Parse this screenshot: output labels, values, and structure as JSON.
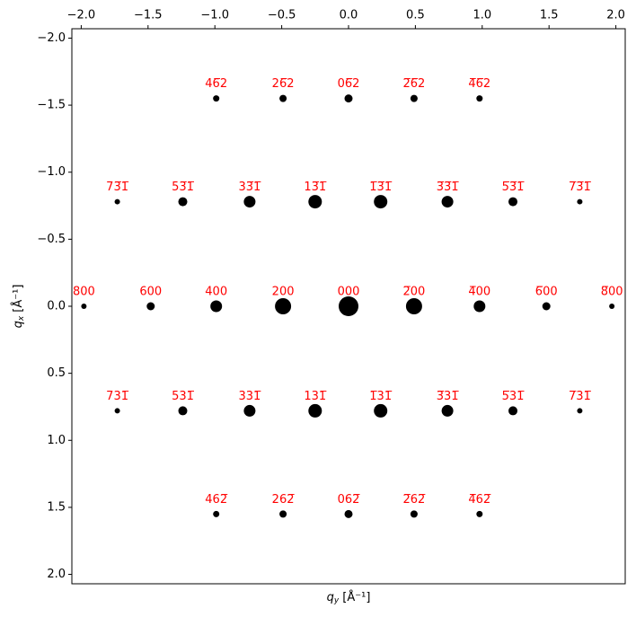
{
  "chart_data": {
    "type": "scatter",
    "xlabel": {
      "symbol": "q",
      "subscript": "y",
      "unit": " [Å⁻¹]"
    },
    "ylabel": {
      "symbol": "q",
      "subscript": "x",
      "unit": " [Å⁻¹]"
    },
    "xlim": [
      -2.07,
      2.07
    ],
    "ylim": [
      2.07,
      -2.07
    ],
    "xticks": [
      {
        "value": -2.0,
        "label": "−2.0"
      },
      {
        "value": -1.5,
        "label": "−1.5"
      },
      {
        "value": -1.0,
        "label": "−1.0"
      },
      {
        "value": -0.5,
        "label": "−0.5"
      },
      {
        "value": 0,
        "label": "0.0"
      },
      0.5,
      {
        "value": 1,
        "label": "1.0"
      },
      1.5,
      {
        "value": 2,
        "label": "2.0"
      }
    ],
    "yticks": [
      {
        "value": -2.0,
        "label": "−2.0"
      },
      {
        "value": -1.5,
        "label": "−1.5"
      },
      {
        "value": -1.0,
        "label": "−1.0"
      },
      {
        "value": -0.5,
        "label": "−0.5"
      },
      {
        "value": 0,
        "label": "0.0"
      },
      0.5,
      {
        "value": 1,
        "label": "1.0"
      },
      1.5,
      {
        "value": 2,
        "label": "2.0"
      }
    ],
    "xaxis_position": "top",
    "label_color": "#ff0000",
    "series": [
      {
        "color": "#000000",
        "x": [
          -0.99,
          -0.49,
          0,
          0.49,
          0.98,
          -1.73,
          -1.24,
          -0.74,
          -0.25,
          0.24,
          0.74,
          1.23,
          1.73,
          -1.98,
          -1.48,
          -0.99,
          -0.49,
          0,
          0.49,
          0.98,
          1.48,
          1.97,
          -1.73,
          -1.24,
          -0.74,
          -0.25,
          0.24,
          0.74,
          1.23,
          1.73,
          -0.99,
          -0.49,
          0,
          0.49,
          0.98
        ],
        "values": [
          -1.55,
          -1.55,
          -1.55,
          -1.55,
          -1.55,
          -0.78,
          -0.78,
          -0.78,
          -0.78,
          -0.78,
          -0.78,
          -0.78,
          -0.78,
          0,
          0,
          0,
          0,
          0,
          0,
          0,
          0,
          0,
          0.78,
          0.78,
          0.78,
          0.78,
          0.78,
          0.78,
          0.78,
          0.78,
          1.55,
          1.55,
          1.55,
          1.55,
          1.55
        ],
        "sizes": [
          49,
          64,
          81,
          64,
          49,
          36,
          100,
          169,
          225,
          225,
          169,
          100,
          36,
          36,
          81,
          169,
          324,
          484,
          324,
          169,
          81,
          36,
          36,
          100,
          169,
          225,
          225,
          169,
          100,
          36,
          49,
          64,
          81,
          64,
          49
        ],
        "labels": [
          "46̅2",
          "26̅2",
          "06̅2",
          "2̅6̅2",
          "4̅6̅2",
          "73̅1̅",
          "53̅1̅",
          "33̅1̅",
          "13̅1̅",
          "1̅3̅1̅",
          "3̅3̅1̅",
          "5̅3̅1̅",
          "7̅3̅1̅",
          "800",
          "600",
          "400",
          "200",
          "000",
          "2̅00",
          "4̅00",
          "6̅00",
          "8̅00",
          "731̅",
          "531̅",
          "331̅",
          "131̅",
          "1̅31̅",
          "3̅31̅",
          "5̅31̅",
          "7̅31̅",
          "462̅",
          "262̅",
          "062̅",
          "2̅62̅",
          "4̅62̅"
        ]
      }
    ]
  }
}
